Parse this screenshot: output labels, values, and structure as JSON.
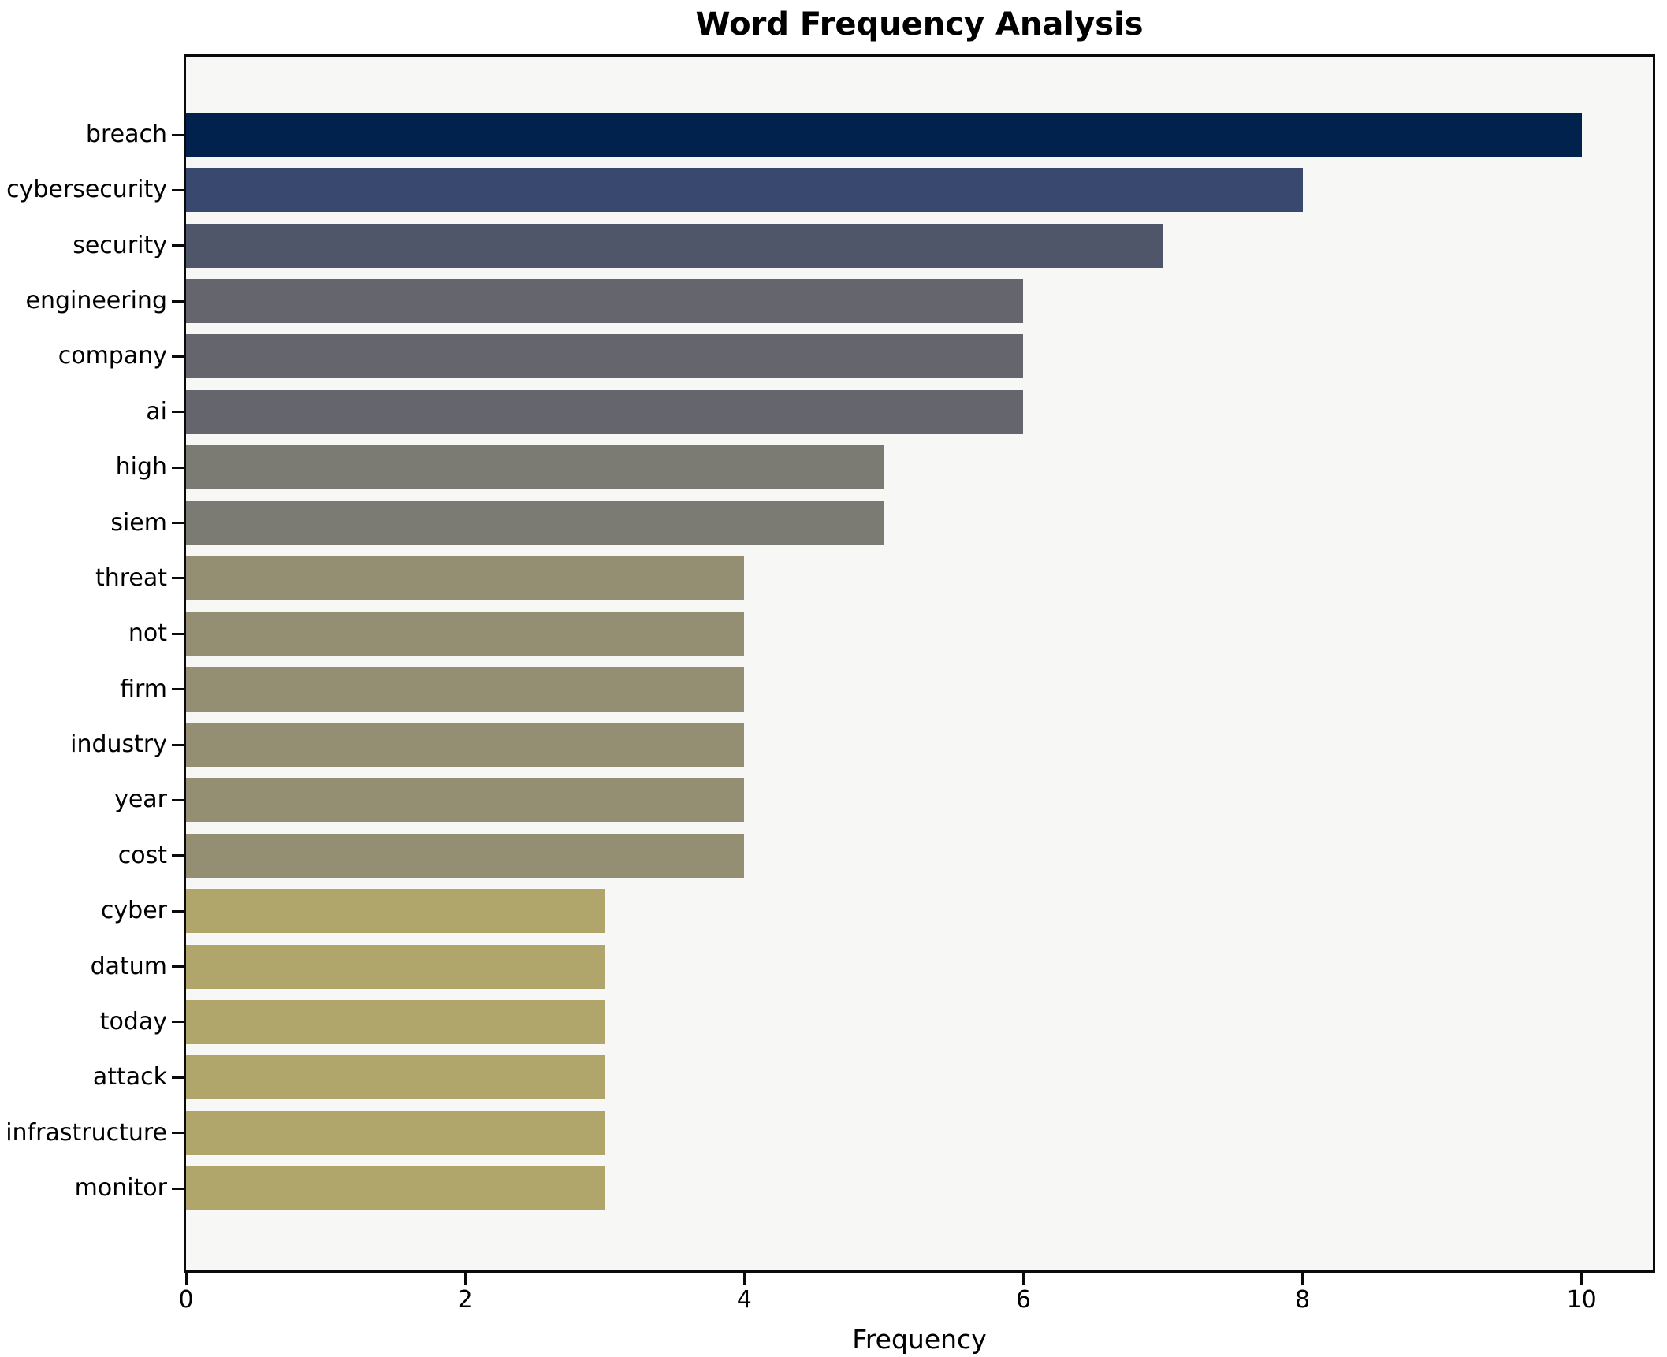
{
  "chart_data": {
    "type": "bar",
    "orientation": "horizontal",
    "title": "Word Frequency Analysis",
    "xlabel": "Frequency",
    "ylabel": "",
    "categories": [
      "breach",
      "cybersecurity",
      "security",
      "engineering",
      "company",
      "ai",
      "high",
      "siem",
      "threat",
      "not",
      "firm",
      "industry",
      "year",
      "cost",
      "cyber",
      "datum",
      "today",
      "attack",
      "infrastructure",
      "monitor"
    ],
    "values": [
      10,
      8,
      7,
      6,
      6,
      6,
      5,
      5,
      4,
      4,
      4,
      4,
      4,
      4,
      3,
      3,
      3,
      3,
      3,
      3
    ],
    "bar_colors": [
      "#01224d",
      "#38486e",
      "#4f5669",
      "#64656d",
      "#64656d",
      "#64656d",
      "#7b7b74",
      "#7b7b74",
      "#948f72",
      "#948f72",
      "#948f72",
      "#948f72",
      "#948f72",
      "#948f72",
      "#b0a66b",
      "#b0a66b",
      "#b0a66b",
      "#b0a66b",
      "#b0a66b",
      "#b0a66b"
    ],
    "x_ticks": [
      0,
      2,
      4,
      6,
      8,
      10
    ],
    "xlim": [
      0,
      10.51
    ],
    "grid": false,
    "legend": null,
    "plot_background": "#f7f7f5",
    "figure_background": "#ffffff",
    "spine_color": "#0a0a0a"
  }
}
